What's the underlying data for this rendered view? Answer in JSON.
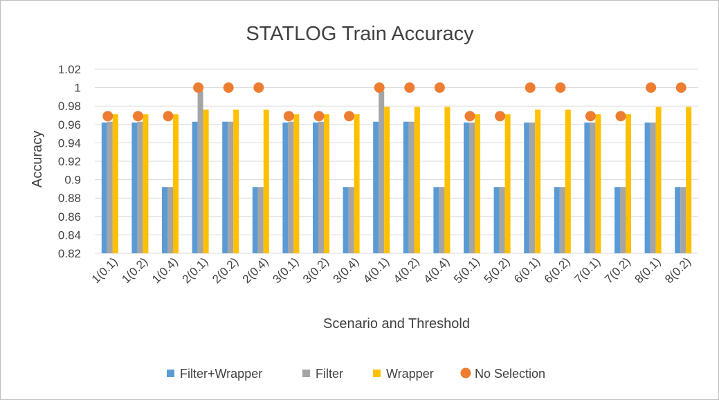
{
  "chart_data": {
    "type": "bar",
    "title": "STATLOG Train Accuracy",
    "xlabel": "Scenario and Threshold",
    "ylabel": "Accuracy",
    "ylim": [
      0.82,
      1.02
    ],
    "ytick_step": 0.02,
    "yticks": [
      "0.82",
      "0.84",
      "0.86",
      "0.88",
      "0.9",
      "0.92",
      "0.94",
      "0.96",
      "0.98",
      "1",
      "1.02"
    ],
    "grid": true,
    "legend_position": "bottom",
    "categories": [
      "1(0.1)",
      "1(0.2)",
      "1(0.4)",
      "2(0.1)",
      "2(0.2)",
      "2(0.4)",
      "3(0.1)",
      "3(0.2)",
      "3(0.4)",
      "4(0.1)",
      "4(0.2)",
      "4(0.4)",
      "5(0.1)",
      "5(0.2)",
      "6(0.1)",
      "6(0.2)",
      "7(0.1)",
      "7(0.2)",
      "8(0.1)",
      "8(0.2)"
    ],
    "series": [
      {
        "name": "Filter+Wrapper",
        "kind": "bar",
        "color": "#5b9bd5",
        "values": [
          0.962,
          0.962,
          0.892,
          0.963,
          0.963,
          0.892,
          0.962,
          0.962,
          0.892,
          0.963,
          0.963,
          0.892,
          0.962,
          0.892,
          0.962,
          0.892,
          0.962,
          0.892,
          0.962,
          0.892
        ]
      },
      {
        "name": "Filter",
        "kind": "bar",
        "color": "#a5a5a5",
        "values": [
          0.963,
          0.963,
          0.892,
          0.996,
          0.963,
          0.892,
          0.963,
          0.963,
          0.892,
          0.996,
          0.963,
          0.892,
          0.962,
          0.892,
          0.962,
          0.892,
          0.962,
          0.892,
          0.962,
          0.892
        ]
      },
      {
        "name": "Wrapper",
        "kind": "bar",
        "color": "#ffc000",
        "values": [
          0.971,
          0.971,
          0.971,
          0.976,
          0.976,
          0.976,
          0.971,
          0.971,
          0.971,
          0.979,
          0.979,
          0.979,
          0.971,
          0.971,
          0.976,
          0.976,
          0.971,
          0.971,
          0.979,
          0.979
        ]
      },
      {
        "name": "No Selection",
        "kind": "dot",
        "color": "#ed7d31",
        "values": [
          0.969,
          0.969,
          0.969,
          1.0,
          1.0,
          1.0,
          0.969,
          0.969,
          0.969,
          1.0,
          1.0,
          1.0,
          0.969,
          0.969,
          1.0,
          1.0,
          0.969,
          0.969,
          1.0,
          1.0
        ]
      }
    ]
  }
}
